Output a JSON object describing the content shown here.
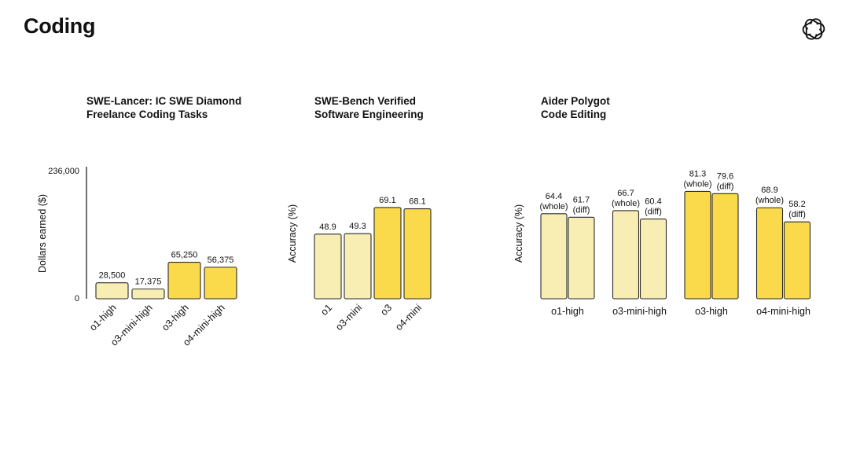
{
  "page": {
    "title": "Coding"
  },
  "logo": {
    "icon": "openai-logo-icon"
  },
  "colors": {
    "light": "#f8eeb4",
    "dark": "#fad94a",
    "stroke": "#2a2a2a"
  },
  "chart_data": [
    {
      "type": "bar",
      "title": "SWE-Lancer: IC SWE Diamond Freelance Coding Tasks",
      "title_lines": [
        "SWE-Lancer: IC SWE Diamond",
        "Freelance Coding Tasks"
      ],
      "ylabel": "Dollars earned ($)",
      "ylim": [
        0,
        236000
      ],
      "yticks": [
        "236,000",
        "0"
      ],
      "categories": [
        "o1-high",
        "o3-mini-high",
        "o3-high",
        "o4-mini-high"
      ],
      "values": [
        28500,
        17375,
        65250,
        56375
      ],
      "value_labels": [
        "28,500",
        "17,375",
        "65,250",
        "56,375"
      ],
      "bar_shades": [
        "light",
        "light",
        "dark",
        "dark"
      ]
    },
    {
      "type": "bar",
      "title": "SWE-Bench Verified Software Engineering",
      "title_lines": [
        "SWE-Bench Verified",
        "Software Engineering"
      ],
      "ylabel": "Accuracy (%)",
      "ylim": [
        0,
        100
      ],
      "categories": [
        "o1",
        "o3-mini",
        "o3",
        "o4-mini"
      ],
      "values": [
        48.9,
        49.3,
        69.1,
        68.1
      ],
      "value_labels": [
        "48.9",
        "49.3",
        "69.1",
        "68.1"
      ],
      "bar_shades": [
        "light",
        "light",
        "dark",
        "dark"
      ]
    },
    {
      "type": "bar",
      "title": "Aider Polygot Code Editing",
      "title_lines": [
        "Aider Polygot",
        "Code Editing"
      ],
      "ylabel": "Accuracy (%)",
      "ylim": [
        0,
        100
      ],
      "categories": [
        "o1-high",
        "o3-mini-high",
        "o3-high",
        "o4-mini-high"
      ],
      "series": [
        {
          "name": "(whole)",
          "values": [
            64.4,
            66.7,
            81.3,
            68.9
          ],
          "value_labels": [
            "64.4",
            "66.7",
            "81.3",
            "68.9"
          ]
        },
        {
          "name": "(diff)",
          "values": [
            61.7,
            60.4,
            79.6,
            58.2
          ],
          "value_labels": [
            "61.7",
            "60.4",
            "79.6",
            "58.2"
          ]
        }
      ],
      "bar_shades": [
        "light",
        "light",
        "dark",
        "dark"
      ]
    }
  ]
}
